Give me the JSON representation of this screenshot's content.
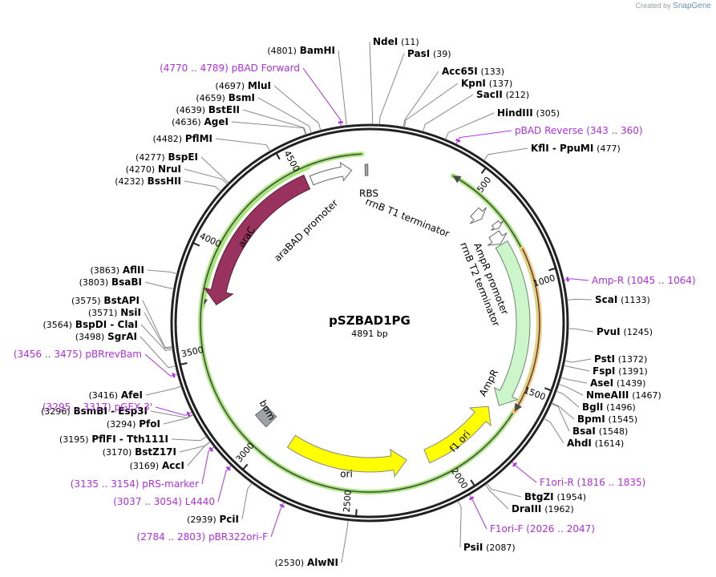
{
  "credit": {
    "prefix": "Created by",
    "brand": "SnapGene"
  },
  "plasmid": {
    "name": "pSZBAD1PG",
    "length_label": "4891 bp",
    "length": 4891
  },
  "colors": {
    "backbone": "#222222",
    "araC": "#99325f",
    "AmpR": "#ccf5cc",
    "ori": "#ffff00",
    "primer": "#b02fe0",
    "orf_outline_green": "#a8e87a",
    "orf_outline_orange": "#ffc77a",
    "misc_grey": "#9ea3a8"
  },
  "ticks": [
    {
      "pos": 500,
      "label": "500"
    },
    {
      "pos": 1000,
      "label": "1000"
    },
    {
      "pos": 1500,
      "label": "1500"
    },
    {
      "pos": 2000,
      "label": "2000"
    },
    {
      "pos": 2500,
      "label": "2500"
    },
    {
      "pos": 3000,
      "label": "3000"
    },
    {
      "pos": 3500,
      "label": "3500"
    },
    {
      "pos": 4000,
      "label": "4000"
    },
    {
      "pos": 4500,
      "label": "4500"
    }
  ],
  "features": [
    {
      "name": "araC",
      "type": "cds",
      "start": 3760,
      "end": 4565,
      "direction": "reverse"
    },
    {
      "name": "araBAD promoter",
      "type": "promoter",
      "start": 4590,
      "end": 4800,
      "direction": "forward"
    },
    {
      "name": "RBS",
      "type": "rbs",
      "start": 4868,
      "end": 4882
    },
    {
      "name": "rrnB T1 terminator",
      "type": "terminator",
      "start": 590,
      "end": 640
    },
    {
      "name": "rrnB T2 terminator",
      "type": "terminator",
      "start": 700,
      "end": 730
    },
    {
      "name": "AmpR promoter",
      "type": "promoter",
      "start": 740,
      "end": 800
    },
    {
      "name": "AmpR",
      "type": "cds",
      "start": 805,
      "end": 1665,
      "direction": "forward"
    },
    {
      "name": "f1 ori",
      "type": "rep_origin",
      "start": 1700,
      "end": 2130,
      "direction": "reverse"
    },
    {
      "name": "ori",
      "type": "rep_origin",
      "start": 2240,
      "end": 2900,
      "direction": "reverse"
    },
    {
      "name": "bom",
      "type": "misc",
      "start": 3055,
      "end": 3140
    }
  ],
  "orfs": [
    {
      "start": 3745,
      "end": 4600,
      "direction": "reverse",
      "color": "green"
    },
    {
      "start": 400,
      "end": 4855,
      "direction": "reverse",
      "color": "green",
      "wraps": true
    },
    {
      "start": 870,
      "end": 1650,
      "direction": "forward",
      "color": "orange"
    }
  ],
  "enzymes_right": [
    {
      "name": "NdeI",
      "pos": "(11)",
      "site": 11
    },
    {
      "name": "PasI",
      "pos": "(39)",
      "site": 39
    },
    {
      "name": "Acc65I",
      "pos": "(133)",
      "site": 133
    },
    {
      "name": "KpnI",
      "pos": "(137)",
      "site": 137
    },
    {
      "name": "SacII",
      "pos": "(212)",
      "site": 212
    },
    {
      "name": "HindIII",
      "pos": "(305)",
      "site": 305
    },
    {
      "name": "KflI  -  PpuMI",
      "pos": "(477)",
      "site": 477
    },
    {
      "name": "ScaI",
      "pos": "(1133)",
      "site": 1133
    },
    {
      "name": "PvuI",
      "pos": "(1245)",
      "site": 1245
    },
    {
      "name": "PstI",
      "pos": "(1372)",
      "site": 1372
    },
    {
      "name": "FspI",
      "pos": "(1391)",
      "site": 1391
    },
    {
      "name": "AseI",
      "pos": "(1439)",
      "site": 1439
    },
    {
      "name": "NmeAIII",
      "pos": "(1467)",
      "site": 1467
    },
    {
      "name": "BglI",
      "pos": "(1496)",
      "site": 1496
    },
    {
      "name": "BpmI",
      "pos": "(1545)",
      "site": 1545
    },
    {
      "name": "BsaI",
      "pos": "(1548)",
      "site": 1548
    },
    {
      "name": "AhdI",
      "pos": "(1614)",
      "site": 1614
    },
    {
      "name": "BtgZI",
      "pos": "(1954)",
      "site": 1954
    },
    {
      "name": "DraIII",
      "pos": "(1962)",
      "site": 1962
    },
    {
      "name": "PsiI",
      "pos": "(2087)",
      "site": 2087
    }
  ],
  "enzymes_left": [
    {
      "name": "AlwNI",
      "pos": "(2530)",
      "site": 2530
    },
    {
      "name": "PciI",
      "pos": "(2939)",
      "site": 2939
    },
    {
      "name": "AccI",
      "pos": "(3169)",
      "site": 3169
    },
    {
      "name": "BstZ17I",
      "pos": "(3170)",
      "site": 3170
    },
    {
      "name": "PflFI  -  Tth111I",
      "pos": "(3195)",
      "site": 3195
    },
    {
      "name": "PfoI",
      "pos": "(3294)",
      "site": 3294
    },
    {
      "name": "BsmBI  -  Esp3I",
      "pos": "(3296)",
      "site": 3296
    },
    {
      "name": "AfeI",
      "pos": "(3416)",
      "site": 3416
    },
    {
      "name": "SgrAI",
      "pos": "(3498)",
      "site": 3498
    },
    {
      "name": "BspDI  -  ClaI",
      "pos": "(3564)",
      "site": 3564
    },
    {
      "name": "NsiI",
      "pos": "(3571)",
      "site": 3571
    },
    {
      "name": "BstAPI",
      "pos": "(3575)",
      "site": 3575
    },
    {
      "name": "BsaBI",
      "pos": "(3803)",
      "site": 3803
    },
    {
      "name": "AflII",
      "pos": "(3863)",
      "site": 3863
    },
    {
      "name": "BssHII",
      "pos": "(4232)",
      "site": 4232
    },
    {
      "name": "NruI",
      "pos": "(4270)",
      "site": 4270
    },
    {
      "name": "BspEI",
      "pos": "(4277)",
      "site": 4277
    },
    {
      "name": "PflMI",
      "pos": "(4482)",
      "site": 4482
    },
    {
      "name": "AgeI",
      "pos": "(4636)",
      "site": 4636
    },
    {
      "name": "BstEII",
      "pos": "(4639)",
      "site": 4639
    },
    {
      "name": "BsmI",
      "pos": "(4659)",
      "site": 4659
    },
    {
      "name": "MluI",
      "pos": "(4697)",
      "site": 4697
    },
    {
      "name": "BamHI",
      "pos": "(4801)",
      "site": 4801
    }
  ],
  "primers": [
    {
      "name": "pBAD Reverse",
      "range": "(343 .. 360)",
      "site": 351,
      "side": "right"
    },
    {
      "name": "Amp-R",
      "range": "(1045 .. 1064)",
      "site": 1054,
      "side": "right"
    },
    {
      "name": "F1ori-R",
      "range": "(1816 .. 1835)",
      "site": 1825,
      "side": "right"
    },
    {
      "name": "F1ori-F",
      "range": "(2026 .. 2047)",
      "site": 2036,
      "side": "right"
    },
    {
      "name": "pBR322ori-F",
      "range": "(2784 .. 2803)",
      "site": 2793,
      "side": "left"
    },
    {
      "name": "L4440",
      "range": "(3037 .. 3054)",
      "site": 3045,
      "side": "left"
    },
    {
      "name": "pRS-marker",
      "range": "(3135 .. 3154)",
      "site": 3144,
      "side": "left"
    },
    {
      "name": "pGEX 3'",
      "range": "(3295 .. 3317)",
      "site": 3306,
      "side": "left"
    },
    {
      "name": "pBRrevBam",
      "range": "(3456 .. 3475)",
      "site": 3465,
      "side": "left"
    },
    {
      "name": "pBAD Forward",
      "range": "(4770 .. 4789)",
      "site": 4779,
      "side": "left"
    }
  ]
}
